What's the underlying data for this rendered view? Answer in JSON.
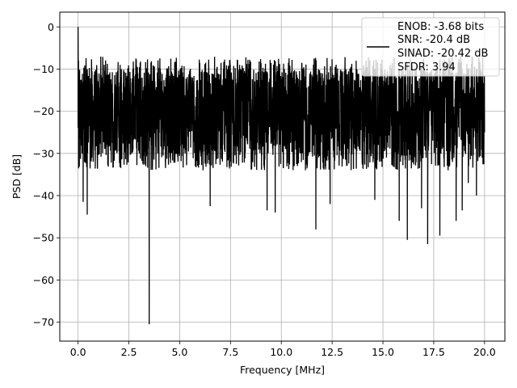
{
  "chart_data": {
    "type": "line",
    "title": "",
    "xlabel": "Frequency [MHz]",
    "ylabel": "PSD [dB]",
    "xlim": [
      -0.9,
      21.0
    ],
    "ylim": [
      -74.5,
      3.5
    ],
    "xticks": [
      0,
      2.5,
      5,
      7.5,
      10,
      12.5,
      15,
      17.5,
      20
    ],
    "xtick_labels": [
      "0.0",
      "2.5",
      "5.0",
      "7.5",
      "10.0",
      "12.5",
      "15.0",
      "17.5",
      "20.0"
    ],
    "yticks": [
      0,
      -10,
      -20,
      -30,
      -40,
      -50,
      -60,
      -70
    ],
    "ytick_labels": [
      "0",
      "−10",
      "−20",
      "−30",
      "−40",
      "−50",
      "−60",
      "−70"
    ],
    "grid": true,
    "legend_placement": "top-right",
    "colors": {
      "series": "#000000",
      "grid": "#b0b0b0"
    },
    "series": [
      {
        "name": "ENOB: -3.68 bits\nSNR: -20.4 dB\nSINAD: -20.42 dB\nSFDR: 3.94",
        "legend_lines": [
          "ENOB: -3.68 bits",
          "SNR: -20.4 dB",
          "SINAD: -20.42 dB",
          "SFDR: 3.94"
        ],
        "x_range": [
          0,
          20
        ],
        "band_upper": -10,
        "band_lower": -30,
        "x": [
          0,
          0.02,
          0.05,
          0.08,
          0.12,
          0.2,
          0.25,
          0.3,
          0.45,
          0.6,
          3.5,
          3.52,
          6.5,
          9.3,
          9.7,
          11.7,
          12.4,
          14.6,
          15.8,
          16.2,
          16.9,
          17.2,
          17.8,
          18.6,
          18.9,
          19.2,
          19.6,
          19.95
        ],
        "values": [
          0,
          -8,
          -12,
          -17,
          -19,
          -30,
          -41.5,
          -22,
          -44.5,
          -20,
          -70.5,
          -22,
          -42.5,
          -43.5,
          -44,
          -48,
          -42,
          -41,
          -46,
          -50.5,
          -43,
          -51.5,
          -49.5,
          -46,
          -43.5,
          -37,
          -40,
          -23
        ]
      }
    ]
  }
}
